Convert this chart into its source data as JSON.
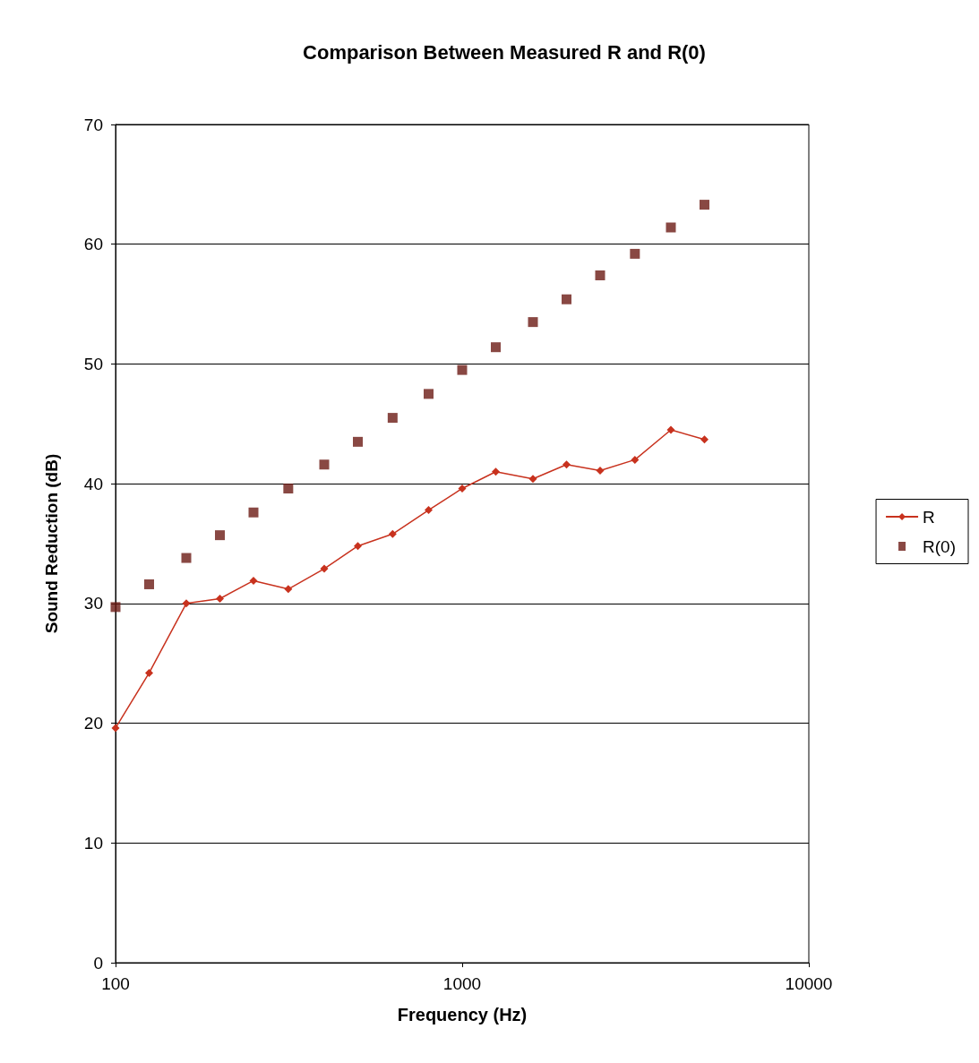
{
  "chart_data": {
    "type": "line",
    "title": "Comparison Between Measured R and R(0)",
    "xlabel": "Frequency (Hz)",
    "ylabel": "Sound Reduction (dB)",
    "x": [
      100,
      125,
      160,
      200,
      250,
      315,
      400,
      500,
      630,
      800,
      1000,
      1250,
      1600,
      2000,
      2500,
      3150,
      4000,
      5000
    ],
    "series": [
      {
        "name": "R",
        "color": "#c8321e",
        "marker": "diamond",
        "line_style": "solid",
        "values": [
          19.6,
          24.2,
          30.0,
          30.4,
          31.9,
          31.2,
          32.9,
          34.8,
          35.8,
          37.8,
          39.6,
          41.0,
          40.4,
          41.6,
          41.1,
          42.0,
          44.5,
          43.7
        ]
      },
      {
        "name": "R(0)",
        "type": "scatter",
        "color": "#6b1a14",
        "marker": "square",
        "values": [
          29.7,
          31.6,
          33.8,
          35.7,
          37.6,
          39.6,
          41.6,
          43.5,
          45.5,
          47.5,
          49.5,
          51.4,
          53.5,
          55.4,
          57.4,
          59.2,
          61.4,
          63.3
        ]
      }
    ],
    "log": "x",
    "xlim": [
      100,
      10000
    ],
    "xticks": [
      100,
      1000,
      10000
    ],
    "ylim": [
      0,
      70
    ],
    "yticks": [
      0,
      10,
      20,
      30,
      40,
      50,
      60,
      70
    ],
    "grid": "y",
    "legend": "right"
  }
}
